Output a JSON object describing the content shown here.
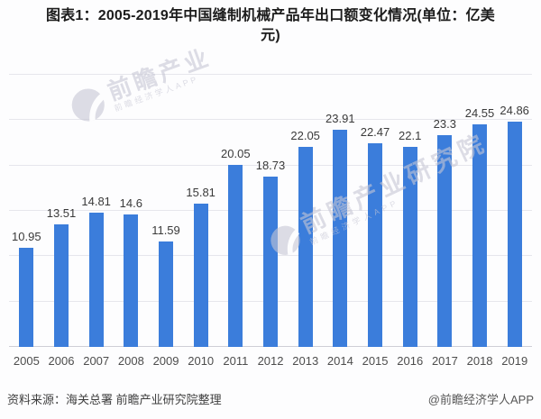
{
  "header": {
    "title_line1": "图表1：2005-2019年中国缝制机械产品年出口额变化情况(单位：亿美",
    "title_line2": "元)"
  },
  "chart_data": {
    "type": "bar",
    "title": "图表1：2005-2019年中国缝制机械产品年出口额变化情况(单位：亿美元)",
    "unit": "亿美元",
    "categories": [
      "2005",
      "2006",
      "2007",
      "2008",
      "2009",
      "2010",
      "2011",
      "2012",
      "2013",
      "2014",
      "2015",
      "2016",
      "2017",
      "2018",
      "2019"
    ],
    "values": [
      10.95,
      13.51,
      14.81,
      14.6,
      11.59,
      15.81,
      20.05,
      18.73,
      22.05,
      23.91,
      22.47,
      22.1,
      23.3,
      24.55,
      24.86
    ],
    "value_labels": [
      "10.95",
      "13.51",
      "14.81",
      "14.6",
      "11.59",
      "15.81",
      "20.05",
      "18.73",
      "22.05",
      "23.91",
      "22.47",
      "22.1",
      "23.3",
      "24.55",
      "24.86"
    ],
    "xlabel": "",
    "ylabel": "",
    "ylim": [
      0,
      30
    ],
    "grid_step": 5,
    "grid": true,
    "legend": null,
    "bar_color": "#3b7ddb",
    "gridline_color": "#e6e6ec"
  },
  "watermarks": {
    "wm1_text": "前瞻产业",
    "wm1_subtext": "前瞻经济学人APP",
    "wm2_text": "前瞻产业研究院",
    "wm2_subtext": "前瞻经济学人APP"
  },
  "footer": {
    "source": "资料来源：海关总署 前瞻产业研究院整理",
    "credit": "@前瞻经济学人APP"
  }
}
